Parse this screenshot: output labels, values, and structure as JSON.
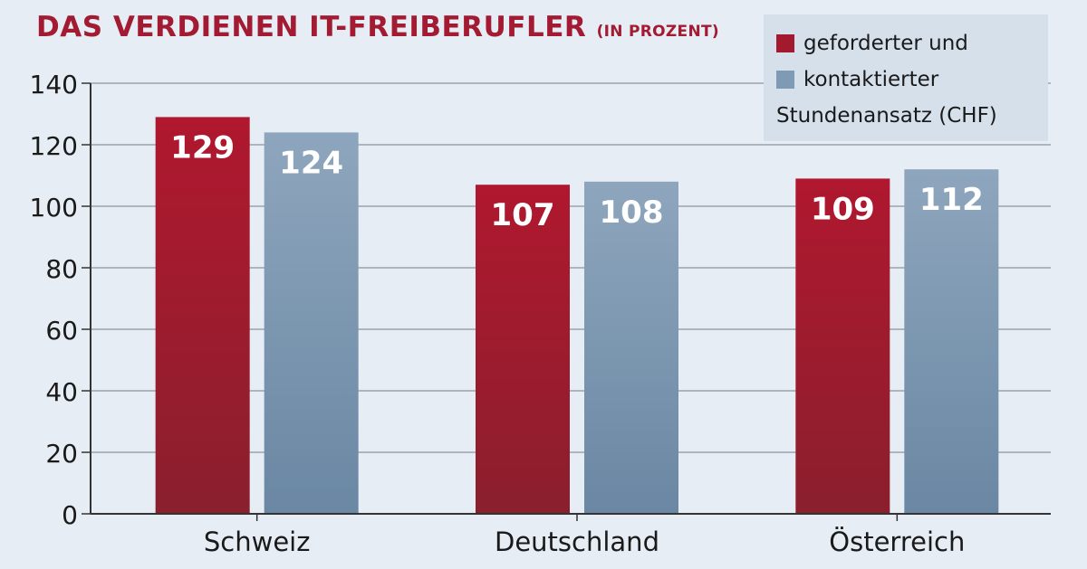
{
  "chart_data": {
    "type": "bar",
    "title": "DAS VERDIENEN IT-FREIBERUFLER",
    "subtitle": "(IN PROZENT)",
    "categories": [
      "Schweiz",
      "Deutschland",
      "Österreich"
    ],
    "series": [
      {
        "name": "geforderter und",
        "color": "#a31a2e",
        "values": [
          129,
          107,
          109
        ]
      },
      {
        "name": "kontaktierter",
        "color": "#7f9ab4",
        "values": [
          124,
          108,
          112
        ]
      }
    ],
    "legend_note": "Stundenansatz (CHF)",
    "ylim": [
      0,
      140
    ],
    "yticks": [
      "0",
      "20",
      "40",
      "60",
      "80",
      "100",
      "120",
      "140"
    ],
    "grid": true,
    "legend_position": "top-right",
    "xlabel": "",
    "ylabel": ""
  }
}
